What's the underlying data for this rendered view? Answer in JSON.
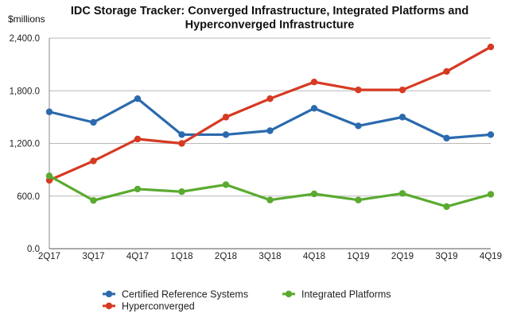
{
  "chart_data": {
    "type": "line",
    "title_lines": [
      "IDC Storage Tracker: Converged Infrastructure, Integrated Platforms and",
      "Hyperconverged Infrastructure"
    ],
    "ylabel": "$millions",
    "xlabel": "",
    "categories": [
      "2Q17",
      "3Q17",
      "4Q17",
      "1Q18",
      "2Q18",
      "3Q18",
      "4Q18",
      "1Q19",
      "2Q19",
      "3Q19",
      "4Q19"
    ],
    "ylim": [
      0,
      2400
    ],
    "yticks": [
      0,
      600,
      1200,
      1800,
      2400
    ],
    "ytick_labels": [
      "0.0",
      "600.0",
      "1,200.0",
      "1,800.0",
      "2,400.0"
    ],
    "grid": true,
    "legend_position": "bottom",
    "series": [
      {
        "name": "Certified Reference Systems",
        "color": "#2b6aad",
        "values": [
          1560,
          1440,
          1710,
          1300,
          1300,
          1345,
          1600,
          1400,
          1500,
          1260,
          1300
        ]
      },
      {
        "name": "Hyperconverged",
        "color": "#d63a23",
        "values": [
          780,
          1000,
          1250,
          1200,
          1500,
          1710,
          1900,
          1810,
          1810,
          2020,
          2300
        ]
      },
      {
        "name": "Integrated Platforms",
        "color": "#5aaa2f",
        "values": [
          830,
          550,
          680,
          650,
          730,
          555,
          625,
          555,
          630,
          480,
          620
        ]
      }
    ]
  }
}
